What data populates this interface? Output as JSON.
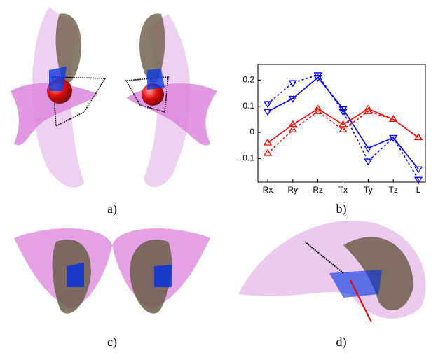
{
  "captions": [
    "a)",
    "b)",
    "c)",
    "d)"
  ],
  "chart_data": {
    "type": "line",
    "categories": [
      "Rx",
      "Ry",
      "Rz",
      "Tx",
      "Ty",
      "Tz",
      "L"
    ],
    "series": [
      {
        "color": "#0000ff",
        "dashed": false,
        "marker": "down",
        "values": [
          0.08,
          0.13,
          0.21,
          0.09,
          -0.06,
          -0.02,
          -0.14
        ]
      },
      {
        "color": "#0000ff",
        "dashed": true,
        "marker": "down",
        "values": [
          0.11,
          0.19,
          0.22,
          0.08,
          -0.11,
          -0.02,
          -0.18
        ]
      },
      {
        "color": "#ff0000",
        "dashed": false,
        "marker": "up",
        "values": [
          -0.04,
          0.03,
          0.09,
          0.03,
          0.09,
          0.05,
          -0.02
        ]
      },
      {
        "color": "#ff0000",
        "dashed": true,
        "marker": "up",
        "values": [
          -0.08,
          0.01,
          0.08,
          0.01,
          0.08,
          0.05,
          -0.02
        ]
      }
    ],
    "ylim": [
      -0.19,
      0.26
    ],
    "yticks": [
      {
        "value": -0.1,
        "label": "−0.1"
      },
      0,
      0.1,
      0.2
    ]
  }
}
